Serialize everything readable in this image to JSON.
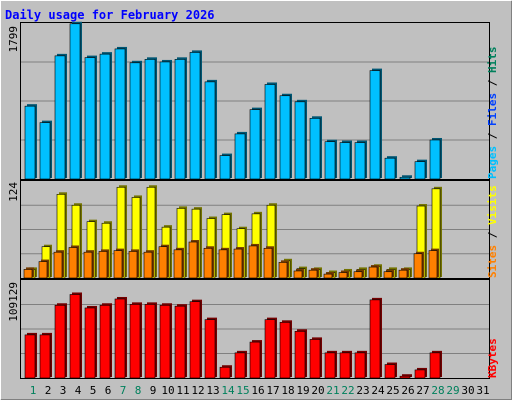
{
  "chart_data": {
    "type": "bar",
    "title": "Daily usage for February 2026",
    "days": [
      "1",
      "2",
      "3",
      "4",
      "5",
      "6",
      "7",
      "8",
      "9",
      "10",
      "11",
      "12",
      "13",
      "14",
      "15",
      "16",
      "17",
      "18",
      "19",
      "20",
      "21",
      "22",
      "23",
      "24",
      "25",
      "26",
      "27",
      "28",
      "29",
      "30",
      "31"
    ],
    "weekend_days": [
      1,
      7,
      8,
      14,
      15,
      21,
      22,
      28,
      29
    ],
    "colors": {
      "background": "#C0C0C0",
      "frame_light": "#FFFFFF",
      "frame_dark": "#808080",
      "grid": "#808080",
      "title": "#0000FF",
      "weekday_label": "#000000",
      "weekend_label": "#00805C",
      "pages": "#00C0FF",
      "files": "#0040FF",
      "hits": "#00805C",
      "visits": "#FFFF00",
      "sites": "#FF8000",
      "kbytes": "#FF0000"
    },
    "panels": [
      {
        "id": "top",
        "ymax_label": "1799",
        "ymax": 1799,
        "legend": [
          "Pages",
          "Files",
          "Hits"
        ],
        "legend_colors": [
          "#00C0FF",
          "#0040FF",
          "#00805C"
        ],
        "series": [
          {
            "name": "Pages",
            "values": [
              840,
              650,
              1420,
              1790,
              1400,
              1440,
              1500,
              1340,
              1380,
              1350,
              1380,
              1460,
              1120,
              270,
              520,
              800,
              1090,
              960,
              890,
              700,
              430,
              420,
              420,
              1250,
              240,
              20,
              200,
              450,
              0,
              0,
              0
            ]
          }
        ]
      },
      {
        "id": "middle",
        "ymax_label": "124",
        "ymax": 124,
        "legend": [
          "Sites",
          "Visits"
        ],
        "legend_colors": [
          "#FF8000",
          "#FFFF00"
        ],
        "series": [
          {
            "name": "Visits",
            "values": [
              11,
              40,
              107,
              93,
              72,
              70,
              116,
              103,
              116,
              65,
              89,
              88,
              76,
              81,
              63,
              82,
              93,
              22,
              12,
              11,
              7,
              9,
              11,
              15,
              11,
              11,
              92,
              114,
              0,
              0,
              0
            ]
          },
          {
            "name": "Sites",
            "values": [
              11,
              21,
              33,
              39,
              33,
              34,
              35,
              34,
              33,
              40,
              36,
              46,
              38,
              36,
              37,
              41,
              38,
              20,
              9,
              10,
              5,
              7,
              8,
              14,
              8,
              10,
              31,
              35,
              0,
              0,
              0
            ]
          }
        ]
      },
      {
        "id": "bottom",
        "ymax_label": "109129",
        "ymax": 109129,
        "legend": [
          "KBytes"
        ],
        "legend_colors": [
          "#FF0000"
        ],
        "series": [
          {
            "name": "KBytes",
            "values": [
              48000,
              48000,
              81000,
              93000,
              78000,
              81000,
              88000,
              82000,
              82000,
              81000,
              80000,
              85000,
              65000,
              12000,
              28000,
              40000,
              65000,
              62000,
              52000,
              43000,
              28000,
              28000,
              28000,
              87000,
              15000,
              2000,
              9000,
              28000,
              0,
              0,
              0
            ]
          }
        ]
      }
    ]
  }
}
